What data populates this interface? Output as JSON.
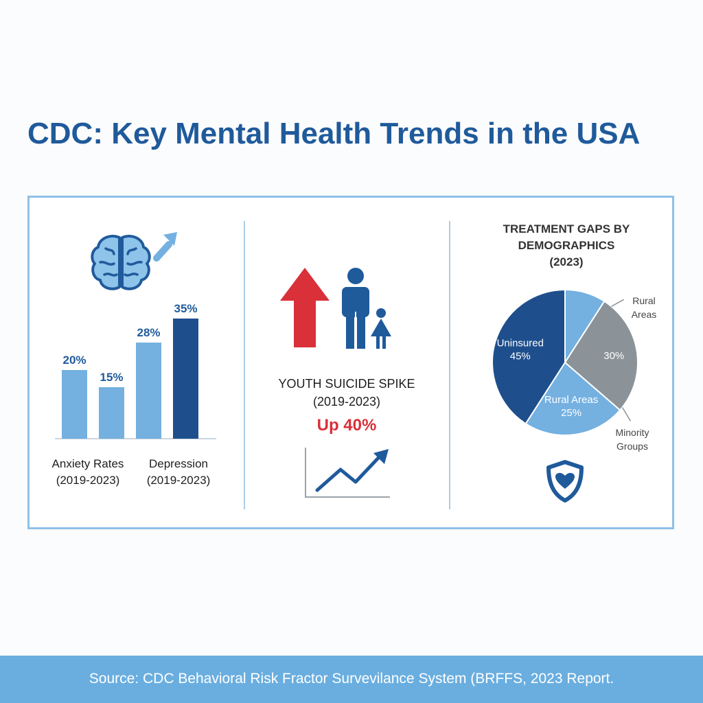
{
  "title": "CDC: Key Mental Health Trends in the USA",
  "colors": {
    "dark_blue": "#1e4f8c",
    "mid_blue": "#1f5a9b",
    "light_blue": "#74b0e0",
    "gray": "#8b9399",
    "red": "#d9303a",
    "text": "#1e1e1e"
  },
  "icons": [
    "brain-icon",
    "trend-up-arrow-icon",
    "red-up-arrow-icon",
    "adult-figure-icon",
    "child-figure-icon",
    "line-trend-icon",
    "shield-heart-icon"
  ],
  "left_panel": {
    "label_1": {
      "title": "Anxiety Rates",
      "period": "(2019-2023)"
    },
    "label_2": {
      "title": "Depression",
      "period": "(2019-2023)"
    }
  },
  "middle_panel": {
    "heading": "YOUTH SUICIDE SPIKE",
    "period": "(2019-2023)",
    "change": "Up 40%"
  },
  "chart_data": [
    {
      "type": "bar",
      "title": "Anxiety Rates / Depression (2019-2023)",
      "categories": [
        "",
        "",
        "",
        ""
      ],
      "values": [
        20,
        15,
        28,
        35
      ],
      "value_labels": [
        "20%",
        "15%",
        "28%",
        "35%"
      ],
      "highlight_index": 3,
      "ylim": [
        0,
        40
      ]
    },
    {
      "type": "pie",
      "title_lines": [
        "TREATMENT GAPS BY",
        "DEMOGRAPHICS",
        "(2023)"
      ],
      "slices": [
        {
          "name": "",
          "value": 10,
          "color": "#74b0e0",
          "label_lines": []
        },
        {
          "name": "Rural Areas",
          "value": 30,
          "color": "#8b9399",
          "label_lines": [
            "30%"
          ]
        },
        {
          "name": "Rural Areas",
          "value": 25,
          "color": "#74b0e0",
          "label_lines": [
            "Rural Areas",
            "25%"
          ]
        },
        {
          "name": "Uninsured",
          "value": 45,
          "color": "#1e4f8c",
          "label_lines": [
            "Uninsured",
            "45%"
          ]
        }
      ],
      "callouts": [
        {
          "lines": [
            "Rural",
            "Areas"
          ]
        },
        {
          "lines": [
            "Minority",
            "Groups"
          ]
        }
      ]
    }
  ],
  "source": "Source: CDC Behavioral Risk Fractor Survevilance System (BRFFS, 2023 Report."
}
